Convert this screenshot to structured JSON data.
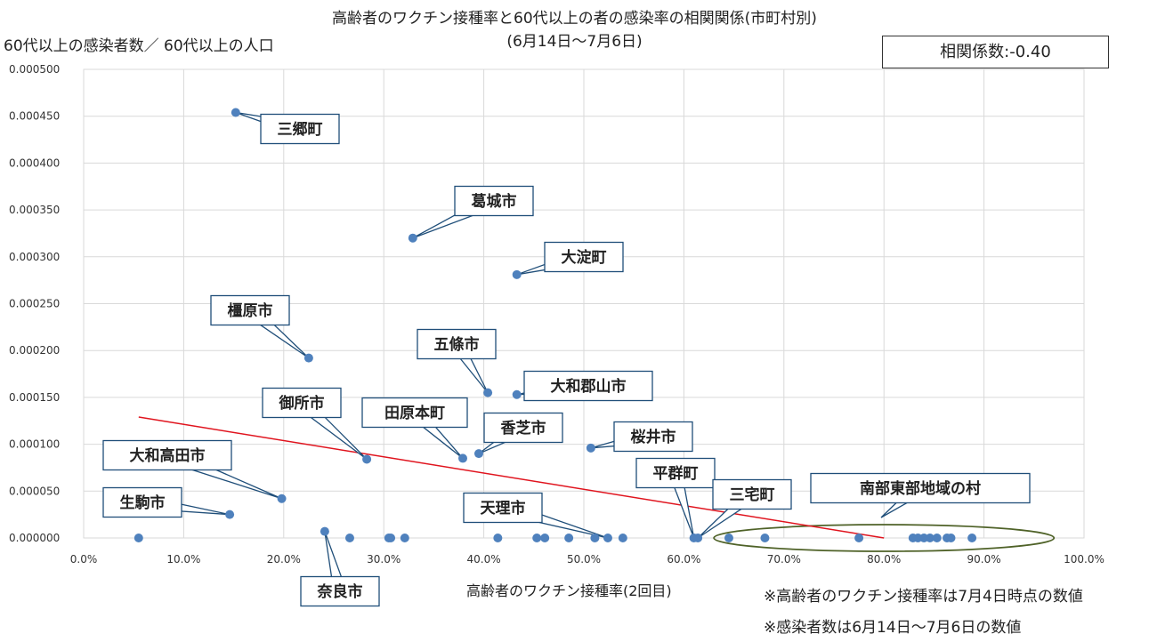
{
  "title_line1": "高齢者のワクチン接種率と60代以上の者の感染率の相関関係(市町村別)",
  "title_line2": "(6月14日～7月6日)",
  "correlation_label": "相関係数:-0.40",
  "notes": [
    "※高齢者のワクチン接種率は7月4日時点の数値",
    "※感染者数は6月14日～7月6日の数値"
  ],
  "colors": {
    "points": "#4f81bd",
    "trend": "#e0141e",
    "ellipse": "#4f6228",
    "grid": "#d9d9d9",
    "label_border": "#1f4e79"
  },
  "chart_data": {
    "type": "scatter",
    "title": "高齢者のワクチン接種率と60代以上の者の感染率の相関関係(市町村別)",
    "subtitle": "(6月14日～7月6日)",
    "xlabel": "高齢者のワクチン接種率(2回目)",
    "ylabel": "60代以上の感染者数／ 60代以上の人口",
    "xlim": [
      0,
      1.0
    ],
    "ylim": [
      0,
      0.0005
    ],
    "x_ticks": [
      "0.0%",
      "10.0%",
      "20.0%",
      "30.0%",
      "40.0%",
      "50.0%",
      "60.0%",
      "70.0%",
      "80.0%",
      "90.0%",
      "100.0%"
    ],
    "y_ticks": [
      "0.000000",
      "0.000050",
      "0.000100",
      "0.000150",
      "0.000200",
      "0.000250",
      "0.000300",
      "0.000350",
      "0.000400",
      "0.000450",
      "0.000500"
    ],
    "grid": true,
    "correlation": -0.4,
    "trendline": {
      "x": [
        0.055,
        0.8
      ],
      "y": [
        0.000129,
        0.0
      ]
    },
    "points": [
      {
        "x": 0.055,
        "y": 0.0
      },
      {
        "x": 0.146,
        "y": 2.5e-05,
        "label": "生駒市"
      },
      {
        "x": 0.152,
        "y": 0.000454,
        "label": "三郷町"
      },
      {
        "x": 0.198,
        "y": 4.2e-05,
        "label": "大和高田市"
      },
      {
        "x": 0.225,
        "y": 0.000192,
        "label": "橿原市"
      },
      {
        "x": 0.241,
        "y": 7e-06,
        "label": "奈良市"
      },
      {
        "x": 0.266,
        "y": 0.0
      },
      {
        "x": 0.283,
        "y": 8.4e-05,
        "label": "御所市"
      },
      {
        "x": 0.305,
        "y": 0.0
      },
      {
        "x": 0.307,
        "y": 0.0
      },
      {
        "x": 0.321,
        "y": 0.0
      },
      {
        "x": 0.329,
        "y": 0.00032,
        "label": "葛城市"
      },
      {
        "x": 0.379,
        "y": 8.5e-05,
        "label": "田原本町"
      },
      {
        "x": 0.395,
        "y": 9e-05,
        "label": "香芝市"
      },
      {
        "x": 0.404,
        "y": 0.000155,
        "label": "五條市"
      },
      {
        "x": 0.414,
        "y": 0.0
      },
      {
        "x": 0.433,
        "y": 0.000281,
        "label": "大淀町"
      },
      {
        "x": 0.433,
        "y": 0.000153,
        "label": "大和郡山市"
      },
      {
        "x": 0.453,
        "y": 0.0
      },
      {
        "x": 0.461,
        "y": 0.0
      },
      {
        "x": 0.485,
        "y": 0.0
      },
      {
        "x": 0.507,
        "y": 9.6e-05,
        "label": "桜井市"
      },
      {
        "x": 0.511,
        "y": 0.0
      },
      {
        "x": 0.524,
        "y": 0.0,
        "label": "天理市"
      },
      {
        "x": 0.539,
        "y": 0.0
      },
      {
        "x": 0.61,
        "y": 0.0,
        "label": "平群町"
      },
      {
        "x": 0.614,
        "y": 0.0,
        "label": "三宅町"
      },
      {
        "x": 0.645,
        "y": 0.0
      },
      {
        "x": 0.681,
        "y": 0.0
      },
      {
        "x": 0.775,
        "y": 0.0
      },
      {
        "x": 0.829,
        "y": 0.0
      },
      {
        "x": 0.834,
        "y": 0.0
      },
      {
        "x": 0.84,
        "y": 0.0
      },
      {
        "x": 0.846,
        "y": 0.0
      },
      {
        "x": 0.853,
        "y": 0.0
      },
      {
        "x": 0.863,
        "y": 0.0
      },
      {
        "x": 0.867,
        "y": 0.0
      },
      {
        "x": 0.888,
        "y": 0.0
      }
    ],
    "group_annotation": {
      "label": "南部東部地域の村",
      "x_range": [
        0.63,
        0.97
      ],
      "y": 0.0
    }
  }
}
